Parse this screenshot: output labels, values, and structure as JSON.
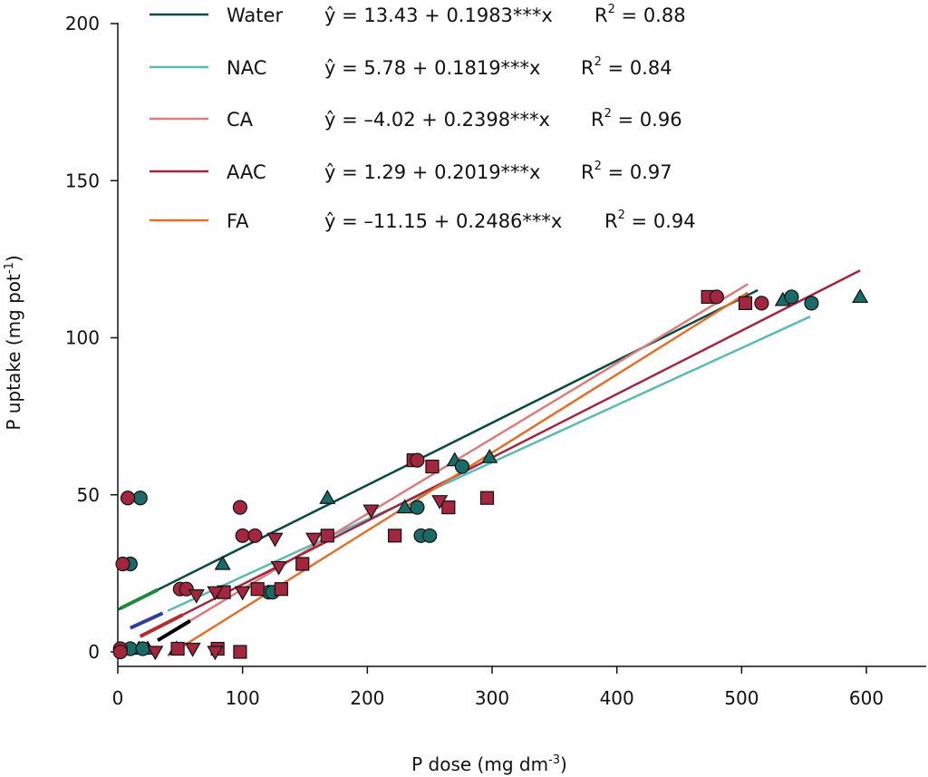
{
  "chart_data": {
    "type": "scatter",
    "xlabel": "P dose (mg dm",
    "xlabel_sup": "-3",
    "xlabel_end": ")",
    "ylabel": "P uptake (mg pot",
    "ylabel_sup": "-1",
    "ylabel_end": ")",
    "xlim": [
      0,
      650
    ],
    "ylim": [
      -5,
      200
    ],
    "xticks": [
      0,
      100,
      200,
      300,
      400,
      500,
      600
    ],
    "yticks": [
      0,
      50,
      100,
      150,
      200
    ],
    "grid": false,
    "legend_position": "top-left",
    "series": [
      {
        "name": "Water",
        "color": "#0b4a45",
        "equation": "ŷ = 13.43 + 0.1983***x",
        "r2_label": "R",
        "r2_sup": "2",
        "r2_value": " = 0.88",
        "intercept": 13.43,
        "slope": 0.1983,
        "line_x": [
          0,
          513
        ],
        "marker": "triangle",
        "marker_color": "#1a6b68",
        "points": [
          [
            17,
            1
          ],
          [
            24,
            1
          ],
          [
            47,
            1
          ],
          [
            84,
            28
          ],
          [
            168,
            49
          ],
          [
            230,
            46
          ],
          [
            270,
            61
          ],
          [
            298,
            62
          ],
          [
            533,
            112
          ],
          [
            595,
            113
          ]
        ]
      },
      {
        "name": "NAC",
        "color": "#5bbab6",
        "equation": "ŷ = 5.78 + 0.1819***x",
        "r2_label": "R",
        "r2_sup": "2",
        "r2_value": " = 0.84",
        "intercept": 5.78,
        "slope": 0.1819,
        "line_x": [
          40,
          555
        ],
        "marker": "circle",
        "marker_color": "#1a6b68",
        "points": [
          [
            10,
            28
          ],
          [
            18,
            49
          ],
          [
            10,
            1
          ],
          [
            20,
            1
          ],
          [
            121,
            19
          ],
          [
            124,
            19
          ],
          [
            240,
            46
          ],
          [
            243,
            37
          ],
          [
            250,
            37
          ],
          [
            276,
            59
          ],
          [
            540,
            113
          ],
          [
            556,
            111
          ]
        ]
      },
      {
        "name": "CA",
        "color": "#d97d7d",
        "equation": "ŷ = –4.02 + 0.2398***x",
        "r2_label": "R",
        "r2_sup": "2",
        "r2_value": " = 0.96",
        "intercept": -4.02,
        "slope": 0.2398,
        "line_x": [
          40,
          505
        ],
        "marker": "square",
        "marker_color": "#a3263f",
        "points": [
          [
            48,
            1
          ],
          [
            80,
            1
          ],
          [
            98,
            0
          ],
          [
            85,
            19
          ],
          [
            112,
            20
          ],
          [
            131,
            20
          ],
          [
            148,
            28
          ],
          [
            168,
            37
          ],
          [
            222,
            37
          ],
          [
            237,
            61
          ],
          [
            252,
            59
          ],
          [
            265,
            46
          ],
          [
            296,
            49
          ],
          [
            473,
            113
          ],
          [
            503,
            111
          ]
        ]
      },
      {
        "name": "AAC",
        "color": "#a3263f",
        "equation": "ŷ = 1.29 + 0.2019***x",
        "r2_label": "R",
        "r2_sup": "2",
        "r2_value": " = 0.97",
        "intercept": 1.29,
        "slope": 0.2019,
        "line_x": [
          18,
          595
        ],
        "marker": "circle",
        "marker_color": "#a3263f",
        "points": [
          [
            4,
            28
          ],
          [
            8,
            49
          ],
          [
            2,
            1
          ],
          [
            2,
            0
          ],
          [
            50,
            20
          ],
          [
            55,
            20
          ],
          [
            98,
            46
          ],
          [
            100,
            37
          ],
          [
            110,
            37
          ],
          [
            240,
            61
          ],
          [
            480,
            113
          ],
          [
            516,
            111
          ]
        ]
      },
      {
        "name": "FA",
        "color": "#e0702a",
        "equation": "ŷ = –11.15 + 0.2486***x",
        "r2_label": "R",
        "r2_sup": "2",
        "r2_value": " = 0.94",
        "intercept": -11.15,
        "slope": 0.2486,
        "line_x": [
          40,
          505
        ],
        "marker": "down-triangle",
        "marker_color": "#a3263f",
        "points": [
          [
            30,
            0
          ],
          [
            60,
            1
          ],
          [
            78,
            0
          ],
          [
            63,
            18
          ],
          [
            78,
            19
          ],
          [
            100,
            19
          ],
          [
            126,
            36
          ],
          [
            129,
            27
          ],
          [
            157,
            36
          ],
          [
            203,
            45
          ],
          [
            258,
            48
          ]
        ]
      }
    ],
    "short_segments": [
      {
        "color": "#1f8a3e",
        "x": [
          2,
          32
        ],
        "intercept": 13.43,
        "slope": 0.1983
      },
      {
        "color": "#2f3f99",
        "x": [
          10,
          36
        ],
        "intercept": 5.78,
        "slope": 0.1819
      },
      {
        "color": "#b32d2d",
        "x": [
          18,
          52
        ],
        "intercept": 1.29,
        "slope": 0.2019
      },
      {
        "color": "#000000",
        "x": [
          32,
          58
        ],
        "intercept": -4.02,
        "slope": 0.2398
      }
    ]
  }
}
